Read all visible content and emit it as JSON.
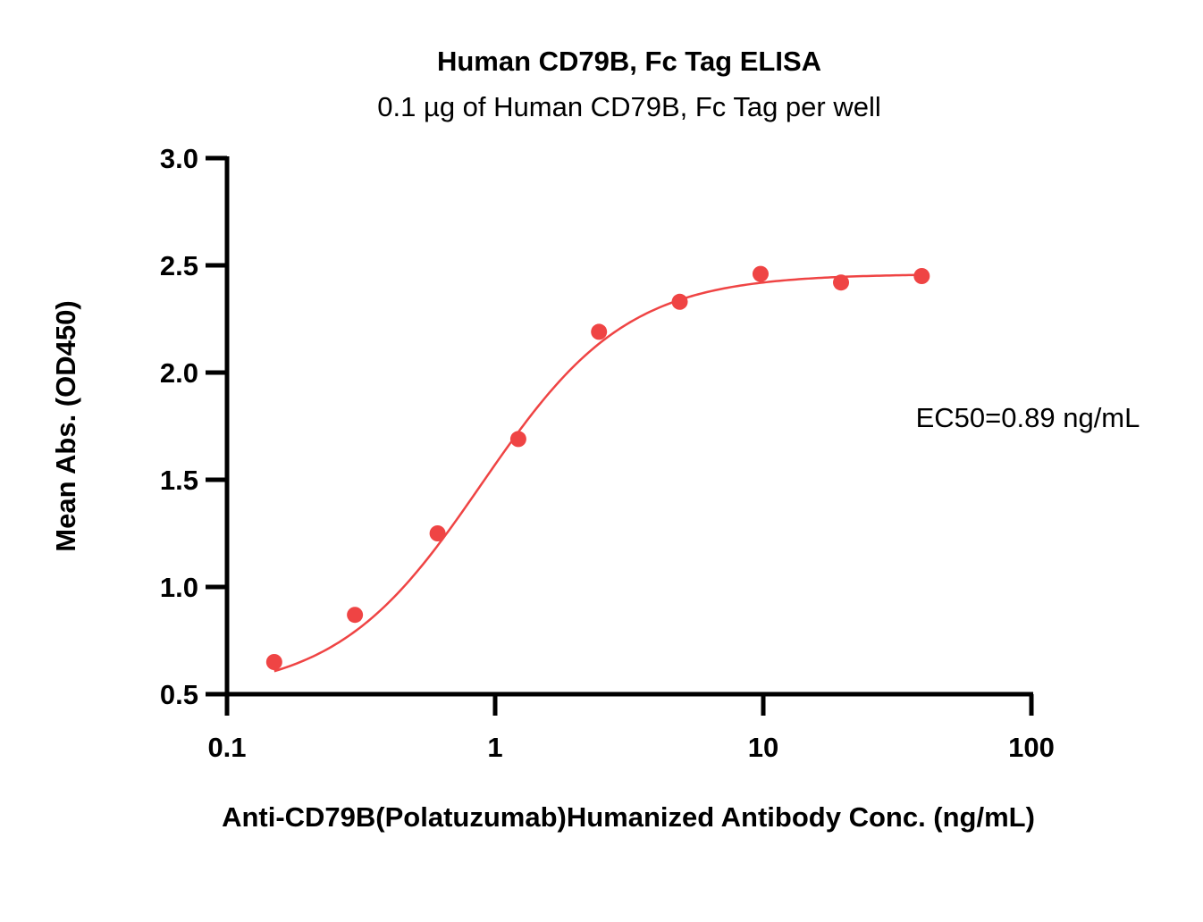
{
  "chart_data": {
    "type": "scatter",
    "title": "Human CD79B, Fc Tag ELISA",
    "subtitle": "0.1 µg of Human CD79B, Fc Tag per well",
    "xlabel": "Anti-CD79B(Polatuzumab)Humanized Antibody Conc. (ng/mL)",
    "ylabel": "Mean Abs. (OD450)",
    "x_scale": "log",
    "xlim": [
      0.1,
      100
    ],
    "ylim": [
      0.5,
      3.0
    ],
    "x_ticks": [
      0.1,
      1,
      10,
      100
    ],
    "x_tick_labels": [
      "0.1",
      "1",
      "10",
      "100"
    ],
    "y_ticks": [
      0.5,
      1.0,
      1.5,
      2.0,
      2.5,
      3.0
    ],
    "y_tick_labels": [
      "0.5",
      "1.0",
      "1.5",
      "2.0",
      "2.5",
      "3.0"
    ],
    "grid": false,
    "legend": "none",
    "annotation": "EC50=0.89  ng/mL",
    "color": "#ef4444",
    "fit": {
      "model": "4PL",
      "bottom": 0.5,
      "top": 2.46,
      "ec50": 0.89,
      "hill": 1.6,
      "x_range": [
        0.15,
        39
      ]
    },
    "series": [
      {
        "x": [
          0.15,
          0.3,
          0.61,
          1.22,
          2.44,
          4.88,
          9.77,
          19.5,
          39
        ],
        "y": [
          0.65,
          0.87,
          1.25,
          1.69,
          2.19,
          2.33,
          2.46,
          2.42,
          2.45
        ]
      }
    ]
  }
}
